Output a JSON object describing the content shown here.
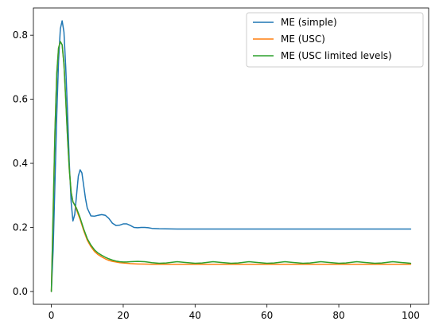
{
  "chart_data": {
    "type": "line",
    "title": "",
    "xlabel": "",
    "ylabel": "",
    "xlim": [
      -5,
      105
    ],
    "ylim": [
      -0.04,
      0.885
    ],
    "xticks": [
      0,
      20,
      40,
      60,
      80,
      100
    ],
    "xtick_labels": [
      "0",
      "20",
      "40",
      "60",
      "80",
      "100"
    ],
    "yticks": [
      0.0,
      0.2,
      0.4,
      0.6,
      0.8
    ],
    "ytick_labels": [
      "0.0",
      "0.2",
      "0.4",
      "0.6",
      "0.8"
    ],
    "grid": false,
    "legend_position": "top-right",
    "series": [
      {
        "name": "ME (simple)",
        "color": "#1f77b4",
        "x": [
          0,
          0.5,
          1,
          1.5,
          2,
          2.5,
          3,
          3.5,
          4,
          4.5,
          5,
          5.5,
          6,
          6.5,
          7,
          7.5,
          8,
          8.5,
          9,
          9.5,
          10,
          11,
          12,
          13,
          14,
          15,
          16,
          17,
          18,
          19,
          20,
          21,
          22,
          23,
          24,
          25,
          26,
          27,
          28,
          30,
          35,
          40,
          50,
          60,
          70,
          80,
          90,
          100
        ],
        "y": [
          0.0,
          0.13,
          0.34,
          0.55,
          0.72,
          0.82,
          0.845,
          0.81,
          0.7,
          0.56,
          0.4,
          0.28,
          0.22,
          0.24,
          0.3,
          0.36,
          0.38,
          0.37,
          0.33,
          0.29,
          0.26,
          0.236,
          0.235,
          0.238,
          0.24,
          0.238,
          0.228,
          0.213,
          0.206,
          0.207,
          0.211,
          0.211,
          0.206,
          0.2,
          0.199,
          0.2,
          0.2,
          0.199,
          0.197,
          0.196,
          0.195,
          0.195,
          0.195,
          0.195,
          0.195,
          0.195,
          0.195,
          0.195
        ]
      },
      {
        "name": "ME (USC)",
        "color": "#ff7f0e",
        "x": [
          0,
          0.5,
          1,
          1.5,
          2,
          2.5,
          3,
          3.5,
          4,
          4.5,
          5,
          5.5,
          6,
          6.5,
          7,
          8,
          9,
          10,
          11,
          12,
          13,
          14,
          15,
          16,
          17,
          18,
          19,
          20,
          21,
          22,
          24,
          26,
          28,
          30,
          35,
          40,
          50,
          60,
          70,
          80,
          90,
          100
        ],
        "y": [
          0.0,
          0.25,
          0.5,
          0.68,
          0.76,
          0.78,
          0.77,
          0.71,
          0.6,
          0.48,
          0.38,
          0.31,
          0.28,
          0.27,
          0.255,
          0.225,
          0.19,
          0.16,
          0.14,
          0.125,
          0.115,
          0.108,
          0.102,
          0.097,
          0.094,
          0.092,
          0.09,
          0.089,
          0.088,
          0.087,
          0.086,
          0.0855,
          0.085,
          0.085,
          0.085,
          0.085,
          0.085,
          0.085,
          0.085,
          0.085,
          0.085,
          0.085
        ]
      },
      {
        "name": "ME (USC limited levels)",
        "color": "#2ca02c",
        "x": [
          0,
          0.5,
          1,
          1.5,
          2,
          2.5,
          3,
          3.5,
          4,
          4.5,
          5,
          5.5,
          6,
          6.5,
          7,
          8,
          9,
          10,
          11,
          12,
          13,
          14,
          15,
          16,
          17,
          18,
          19,
          20,
          21,
          22,
          24,
          26,
          28,
          30,
          32,
          35,
          37,
          40,
          42,
          45,
          47,
          50,
          52,
          55,
          57,
          60,
          62,
          65,
          67,
          70,
          72,
          75,
          77,
          80,
          82,
          85,
          87,
          90,
          92,
          95,
          97,
          100
        ],
        "y": [
          0.0,
          0.25,
          0.5,
          0.68,
          0.76,
          0.78,
          0.77,
          0.71,
          0.6,
          0.48,
          0.38,
          0.31,
          0.28,
          0.27,
          0.26,
          0.23,
          0.195,
          0.165,
          0.145,
          0.13,
          0.12,
          0.113,
          0.107,
          0.102,
          0.098,
          0.095,
          0.093,
          0.092,
          0.092,
          0.093,
          0.094,
          0.093,
          0.09,
          0.088,
          0.089,
          0.093,
          0.091,
          0.088,
          0.089,
          0.093,
          0.091,
          0.088,
          0.089,
          0.093,
          0.091,
          0.088,
          0.089,
          0.093,
          0.091,
          0.088,
          0.089,
          0.093,
          0.091,
          0.088,
          0.089,
          0.093,
          0.091,
          0.088,
          0.089,
          0.093,
          0.091,
          0.088
        ]
      }
    ]
  }
}
